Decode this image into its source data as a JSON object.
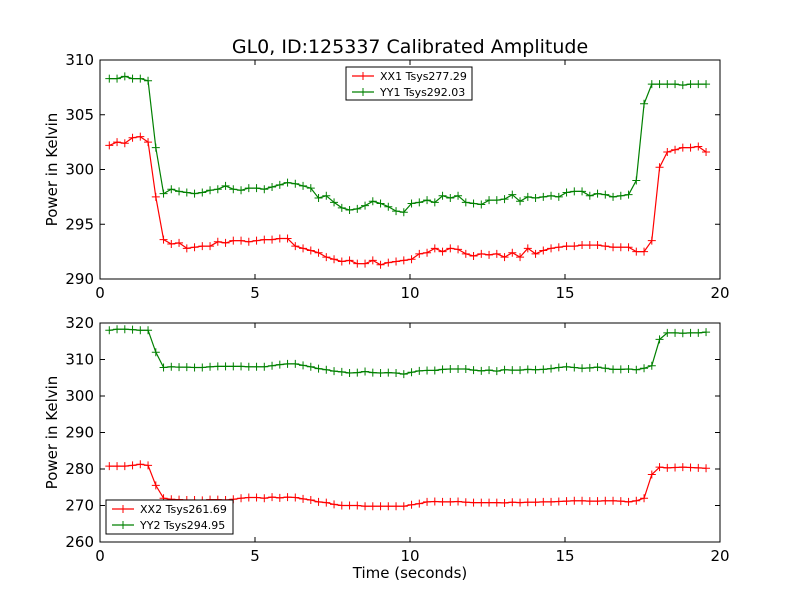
{
  "title": "GL0, ID:125337 Calibrated Amplitude",
  "chart_data": [
    {
      "type": "line",
      "ylabel": "Power in Kelvin",
      "xlabel": "",
      "xlim": [
        0,
        20
      ],
      "ylim": [
        290,
        310
      ],
      "xticks": [
        0,
        5,
        10,
        15,
        20
      ],
      "yticks": [
        290,
        295,
        300,
        305,
        310
      ],
      "xticklabels": [
        "0",
        "5",
        "10",
        "15",
        "20"
      ],
      "yticklabels": [
        "290",
        "295",
        "300",
        "305",
        "310"
      ],
      "legend_position": "top-center",
      "x": [
        0.3,
        0.55,
        0.8,
        1.05,
        1.3,
        1.55,
        1.8,
        2.05,
        2.3,
        2.55,
        2.8,
        3.05,
        3.3,
        3.55,
        3.8,
        4.05,
        4.3,
        4.55,
        4.8,
        5.05,
        5.3,
        5.55,
        5.8,
        6.05,
        6.3,
        6.55,
        6.8,
        7.05,
        7.3,
        7.55,
        7.8,
        8.05,
        8.3,
        8.55,
        8.8,
        9.05,
        9.3,
        9.55,
        9.8,
        10.05,
        10.3,
        10.55,
        10.8,
        11.05,
        11.3,
        11.55,
        11.8,
        12.05,
        12.3,
        12.55,
        12.8,
        13.05,
        13.3,
        13.55,
        13.8,
        14.05,
        14.3,
        14.55,
        14.8,
        15.05,
        15.3,
        15.55,
        15.8,
        16.05,
        16.3,
        16.55,
        16.8,
        17.05,
        17.3,
        17.55,
        17.8,
        18.05,
        18.3,
        18.55,
        18.8,
        19.05,
        19.3,
        19.55
      ],
      "series": [
        {
          "name": "XX1 Tsys277.29",
          "color": "#ff0000",
          "values": [
            302.2,
            302.5,
            302.4,
            302.9,
            303.0,
            302.5,
            297.5,
            293.6,
            293.2,
            293.3,
            292.8,
            292.9,
            293.0,
            293.0,
            293.4,
            293.3,
            293.5,
            293.5,
            293.4,
            293.5,
            293.6,
            293.6,
            293.7,
            293.7,
            293.0,
            292.8,
            292.6,
            292.4,
            292.0,
            291.8,
            291.6,
            291.7,
            291.4,
            291.4,
            291.7,
            291.3,
            291.5,
            291.6,
            291.7,
            291.8,
            292.3,
            292.4,
            292.8,
            292.5,
            292.8,
            292.7,
            292.3,
            292.1,
            292.3,
            292.2,
            292.3,
            292.0,
            292.4,
            292.0,
            292.8,
            292.3,
            292.6,
            292.8,
            292.9,
            293.0,
            293.0,
            293.1,
            293.1,
            293.1,
            293.0,
            292.9,
            292.9,
            292.9,
            292.5,
            292.5,
            293.5,
            300.2,
            301.6,
            301.8,
            302.0,
            302.0,
            302.1,
            301.6
          ]
        },
        {
          "name": "YY1 Tsys292.03",
          "color": "#008000",
          "values": [
            308.3,
            308.3,
            308.5,
            308.3,
            308.3,
            308.1,
            302.0,
            297.8,
            298.2,
            298.0,
            297.9,
            297.8,
            297.9,
            298.1,
            298.2,
            298.5,
            298.2,
            298.1,
            298.3,
            298.3,
            298.2,
            298.4,
            298.6,
            298.8,
            298.7,
            298.5,
            298.3,
            297.4,
            297.6,
            297.0,
            296.5,
            296.3,
            296.4,
            296.7,
            297.1,
            296.9,
            296.6,
            296.2,
            296.1,
            296.9,
            297.0,
            297.2,
            297.0,
            297.6,
            297.4,
            297.6,
            297.0,
            296.9,
            296.8,
            297.2,
            297.2,
            297.3,
            297.7,
            297.1,
            297.5,
            297.4,
            297.5,
            297.6,
            297.5,
            297.9,
            298.0,
            298.0,
            297.6,
            297.8,
            297.7,
            297.5,
            297.6,
            297.7,
            299.0,
            306.0,
            307.8,
            307.8,
            307.8,
            307.8,
            307.7,
            307.8,
            307.8,
            307.8
          ]
        }
      ]
    },
    {
      "type": "line",
      "ylabel": "Power in Kelvin",
      "xlabel": "Time (seconds)",
      "xlim": [
        0,
        20
      ],
      "ylim": [
        260,
        320
      ],
      "xticks": [
        0,
        5,
        10,
        15,
        20
      ],
      "yticks": [
        260,
        270,
        280,
        290,
        300,
        310,
        320
      ],
      "xticklabels": [
        "0",
        "5",
        "10",
        "15",
        "20"
      ],
      "yticklabels": [
        "260",
        "270",
        "280",
        "290",
        "300",
        "310",
        "320"
      ],
      "legend_position": "lower-left",
      "x": [
        0.3,
        0.55,
        0.8,
        1.05,
        1.3,
        1.55,
        1.8,
        2.05,
        2.3,
        2.55,
        2.8,
        3.05,
        3.3,
        3.55,
        3.8,
        4.05,
        4.3,
        4.55,
        4.8,
        5.05,
        5.3,
        5.55,
        5.8,
        6.05,
        6.3,
        6.55,
        6.8,
        7.05,
        7.3,
        7.55,
        7.8,
        8.05,
        8.3,
        8.55,
        8.8,
        9.05,
        9.3,
        9.55,
        9.8,
        10.05,
        10.3,
        10.55,
        10.8,
        11.05,
        11.3,
        11.55,
        11.8,
        12.05,
        12.3,
        12.55,
        12.8,
        13.05,
        13.3,
        13.55,
        13.8,
        14.05,
        14.3,
        14.55,
        14.8,
        15.05,
        15.3,
        15.55,
        15.8,
        16.05,
        16.3,
        16.55,
        16.8,
        17.05,
        17.3,
        17.55,
        17.8,
        18.05,
        18.3,
        18.55,
        18.8,
        19.05,
        19.3,
        19.55
      ],
      "series": [
        {
          "name": "XX2 Tsys261.69",
          "color": "#ff0000",
          "values": [
            280.8,
            280.8,
            280.8,
            281.0,
            281.3,
            281.0,
            275.5,
            272.0,
            271.7,
            271.6,
            271.5,
            271.5,
            271.4,
            271.6,
            271.6,
            271.5,
            271.7,
            272.0,
            272.2,
            272.2,
            272.0,
            272.3,
            272.1,
            272.3,
            272.2,
            271.8,
            271.5,
            271.0,
            270.8,
            270.3,
            270.0,
            270.0,
            270.0,
            269.8,
            269.8,
            269.8,
            269.8,
            269.8,
            269.8,
            270.2,
            270.5,
            271.0,
            271.1,
            271.0,
            271.0,
            271.1,
            270.9,
            270.8,
            270.8,
            270.8,
            270.8,
            270.7,
            270.9,
            270.8,
            270.9,
            270.9,
            271.0,
            271.0,
            271.1,
            271.2,
            271.3,
            271.3,
            271.2,
            271.2,
            271.3,
            271.3,
            271.2,
            271.0,
            271.3,
            272.0,
            278.5,
            280.5,
            280.3,
            280.4,
            280.5,
            280.4,
            280.3,
            280.2
          ]
        },
        {
          "name": "YY2 Tsys294.95",
          "color": "#008000",
          "values": [
            318.0,
            318.3,
            318.3,
            318.2,
            318.0,
            318.0,
            312.0,
            307.8,
            308.0,
            307.9,
            307.9,
            307.8,
            307.8,
            308.0,
            308.1,
            308.1,
            308.1,
            308.1,
            308.0,
            308.0,
            308.0,
            308.3,
            308.6,
            308.8,
            308.8,
            308.4,
            308.0,
            307.5,
            307.2,
            306.8,
            306.6,
            306.3,
            306.4,
            306.7,
            306.4,
            306.3,
            306.4,
            306.3,
            306.0,
            306.5,
            306.9,
            307.0,
            307.0,
            307.3,
            307.4,
            307.4,
            307.4,
            307.1,
            306.9,
            307.1,
            306.8,
            307.2,
            307.1,
            307.1,
            307.3,
            307.2,
            307.3,
            307.5,
            307.8,
            308.0,
            307.8,
            307.6,
            307.7,
            307.9,
            307.6,
            307.3,
            307.3,
            307.4,
            307.2,
            307.6,
            308.3,
            315.5,
            317.3,
            317.3,
            317.2,
            317.3,
            317.3,
            317.5
          ]
        }
      ]
    }
  ]
}
